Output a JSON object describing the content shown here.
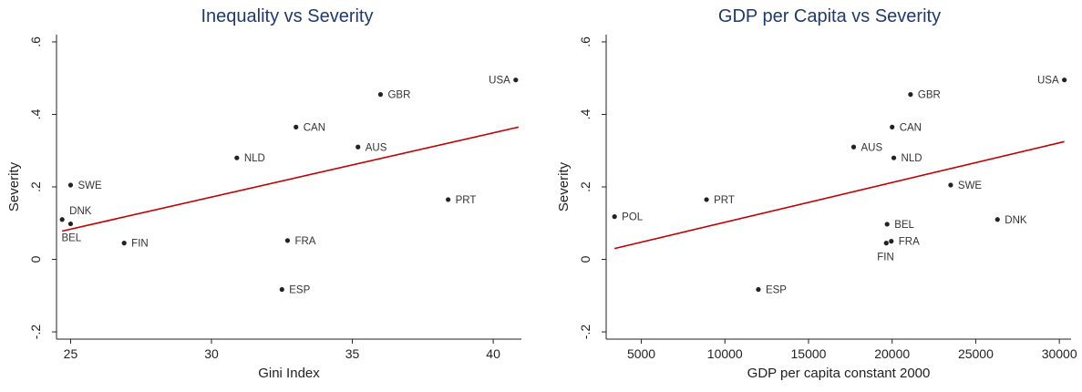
{
  "chart_data": [
    {
      "type": "scatter",
      "title": "Inequality vs Severity",
      "xlabel": "Gini Index",
      "ylabel": "Severity",
      "xlim": [
        24.5,
        41
      ],
      "ylim": [
        -0.22,
        0.62
      ],
      "xticks": [
        25,
        30,
        35,
        40
      ],
      "xtick_labels": [
        "25",
        "30",
        "35",
        "40"
      ],
      "yticks": [
        -0.2,
        0,
        0.2,
        0.4,
        0.6
      ],
      "ytick_labels": [
        "-.2",
        "0",
        ".2",
        ".4",
        ".6"
      ],
      "point_color": "#222222",
      "fit_color": "#c00000",
      "points": [
        {
          "label": "USA",
          "x": 40.8,
          "y": 0.495,
          "side": "left"
        },
        {
          "label": "GBR",
          "x": 36.0,
          "y": 0.455,
          "side": "right"
        },
        {
          "label": "CAN",
          "x": 33.0,
          "y": 0.365,
          "side": "right"
        },
        {
          "label": "AUS",
          "x": 35.2,
          "y": 0.31,
          "side": "right"
        },
        {
          "label": "NLD",
          "x": 30.9,
          "y": 0.28,
          "side": "right"
        },
        {
          "label": "PRT",
          "x": 38.4,
          "y": 0.165,
          "side": "right"
        },
        {
          "label": "SWE",
          "x": 25.0,
          "y": 0.205,
          "side": "right"
        },
        {
          "label": "DNK",
          "x": 24.7,
          "y": 0.11,
          "side": "above-right"
        },
        {
          "label": "BEL",
          "x": 25.0,
          "y": 0.098,
          "side": "below-left"
        },
        {
          "label": "FIN",
          "x": 26.9,
          "y": 0.045,
          "side": "right"
        },
        {
          "label": "FRA",
          "x": 32.7,
          "y": 0.052,
          "side": "right"
        },
        {
          "label": "ESP",
          "x": 32.5,
          "y": -0.083,
          "side": "right"
        }
      ],
      "fit_line": {
        "x": [
          24.7,
          40.9
        ],
        "y": [
          0.078,
          0.365
        ]
      }
    },
    {
      "type": "scatter",
      "title": "GDP per Capita vs Severity",
      "xlabel": "GDP per capita constant 2000",
      "ylabel": "Severity",
      "xlim": [
        2900,
        30700
      ],
      "ylim": [
        -0.22,
        0.62
      ],
      "xticks": [
        5000,
        10000,
        15000,
        20000,
        25000,
        30000
      ],
      "xtick_labels": [
        "5000",
        "10000",
        "15000",
        "20000",
        "25000",
        "30000"
      ],
      "yticks": [
        -0.2,
        0,
        0.2,
        0.4,
        0.6
      ],
      "ytick_labels": [
        "-.2",
        "0",
        ".2",
        ".4",
        ".6"
      ],
      "point_color": "#222222",
      "fit_color": "#c00000",
      "points": [
        {
          "label": "USA",
          "x": 30300,
          "y": 0.495,
          "side": "left"
        },
        {
          "label": "GBR",
          "x": 21100,
          "y": 0.455,
          "side": "right"
        },
        {
          "label": "CAN",
          "x": 20000,
          "y": 0.365,
          "side": "right"
        },
        {
          "label": "AUS",
          "x": 17700,
          "y": 0.31,
          "side": "right"
        },
        {
          "label": "NLD",
          "x": 20100,
          "y": 0.28,
          "side": "right"
        },
        {
          "label": "SWE",
          "x": 23500,
          "y": 0.205,
          "side": "right"
        },
        {
          "label": "PRT",
          "x": 8900,
          "y": 0.165,
          "side": "right"
        },
        {
          "label": "POL",
          "x": 3400,
          "y": 0.118,
          "side": "right"
        },
        {
          "label": "DNK",
          "x": 26300,
          "y": 0.11,
          "side": "right"
        },
        {
          "label": "BEL",
          "x": 19700,
          "y": 0.097,
          "side": "right"
        },
        {
          "label": "FRA",
          "x": 19950,
          "y": 0.05,
          "side": "right"
        },
        {
          "label": "FIN",
          "x": 19650,
          "y": 0.045,
          "side": "below"
        },
        {
          "label": "ESP",
          "x": 12000,
          "y": -0.083,
          "side": "right"
        }
      ],
      "fit_line": {
        "x": [
          3400,
          30300
        ],
        "y": [
          0.03,
          0.325
        ]
      }
    }
  ]
}
